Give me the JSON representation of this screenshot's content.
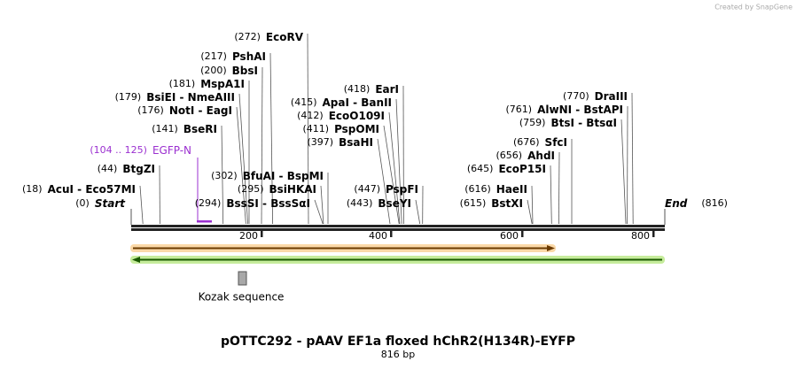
{
  "credit": "Created by SnapGene",
  "sites": [
    {
      "position": "(272)",
      "name": "EcoRV"
    },
    {
      "position": "(217)",
      "name": "PshAI"
    },
    {
      "position": "(200)",
      "name": "BbsI"
    },
    {
      "position": "(181)",
      "name": "MspA1I"
    },
    {
      "position": "(179)",
      "name": "BsiEI - NmeAIII"
    },
    {
      "position": "(176)",
      "name": "NotI - EagI"
    },
    {
      "position": "(141)",
      "name": "BseRI"
    },
    {
      "position": "(44)",
      "name": "BtgZI"
    },
    {
      "position": "(18)",
      "name": "AcuI - Eco57MI"
    },
    {
      "position": "(302)",
      "name": "BfuAI - BspMI"
    },
    {
      "position": "(295)",
      "name": "BsiHKAI"
    },
    {
      "position": "(294)",
      "name": "BssSI - BssSαI"
    },
    {
      "position": "(418)",
      "name": "EarI"
    },
    {
      "position": "(415)",
      "name": "ApaI - BanII"
    },
    {
      "position": "(412)",
      "name": "EcoO109I"
    },
    {
      "position": "(411)",
      "name": "PspOMI"
    },
    {
      "position": "(397)",
      "name": "BsaHI"
    },
    {
      "position": "(447)",
      "name": "PspFI"
    },
    {
      "position": "(443)",
      "name": "BseYI"
    },
    {
      "position": "(770)",
      "name": "DraIII"
    },
    {
      "position": "(761)",
      "name": "AlwNI - BstAPI"
    },
    {
      "position": "(759)",
      "name": "BtsI - BtsαI"
    },
    {
      "position": "(676)",
      "name": "SfcI"
    },
    {
      "position": "(656)",
      "name": "AhdI"
    },
    {
      "position": "(645)",
      "name": "EcoP15I"
    },
    {
      "position": "(616)",
      "name": "HaeII"
    },
    {
      "position": "(615)",
      "name": "BstXI"
    }
  ],
  "start": {
    "position": "(0)",
    "label": "Start"
  },
  "end": {
    "label": "End",
    "position": "(816)"
  },
  "feature": {
    "range": "(104 .. 125)",
    "name": "EGFP-N"
  },
  "ruler": [
    200,
    400,
    600,
    800
  ],
  "kozak": "Kozak sequence",
  "title": "pOTTC292 - pAAV EF1a floxed hChR2(H134R)-EYFP",
  "length": "816 bp"
}
